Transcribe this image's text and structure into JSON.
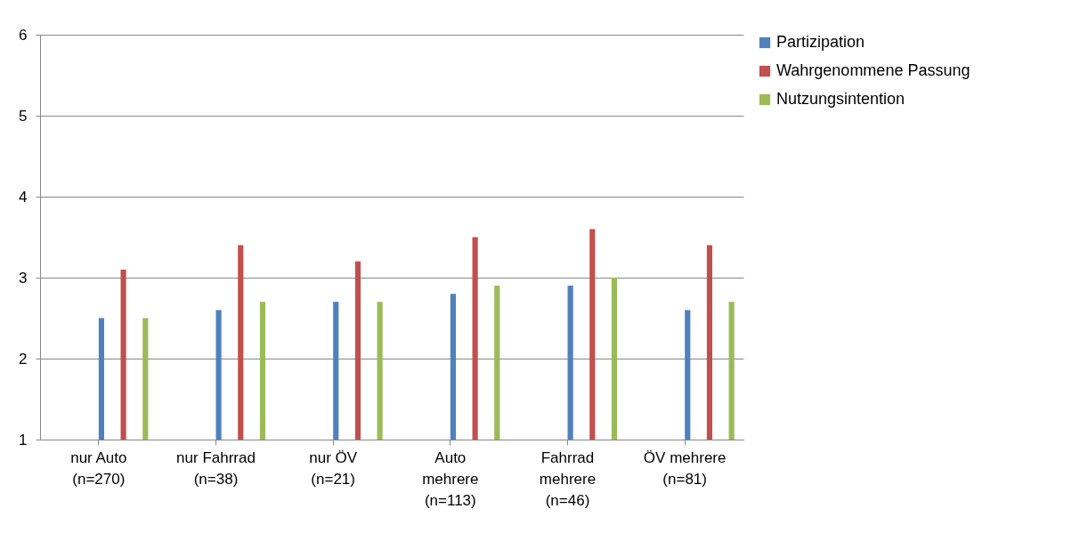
{
  "chart_data": {
    "type": "bar",
    "categories": [
      "nur Auto (n=270)",
      "nur Fahrrad (n=38)",
      "nur ÖV (n=21)",
      "Auto mehrere (n=113)",
      "Fahrrad mehrere (n=46)",
      "ÖV mehrere (n=81)"
    ],
    "series": [
      {
        "name": "Partizipation",
        "color": "#4f81bd",
        "values": [
          2.5,
          2.6,
          2.7,
          2.8,
          2.9,
          2.6
        ]
      },
      {
        "name": "Wahrgenommene Passung",
        "color": "#c0504d",
        "values": [
          3.1,
          3.4,
          3.2,
          3.5,
          3.6,
          3.4
        ]
      },
      {
        "name": "Nutzungsintention",
        "color": "#9bbb59",
        "values": [
          2.5,
          2.7,
          2.7,
          2.9,
          3.0,
          2.7
        ]
      }
    ],
    "ylim": [
      1,
      6
    ],
    "yticks": [
      1,
      2,
      3,
      4,
      5,
      6
    ],
    "grid": "y",
    "legend": "right"
  }
}
